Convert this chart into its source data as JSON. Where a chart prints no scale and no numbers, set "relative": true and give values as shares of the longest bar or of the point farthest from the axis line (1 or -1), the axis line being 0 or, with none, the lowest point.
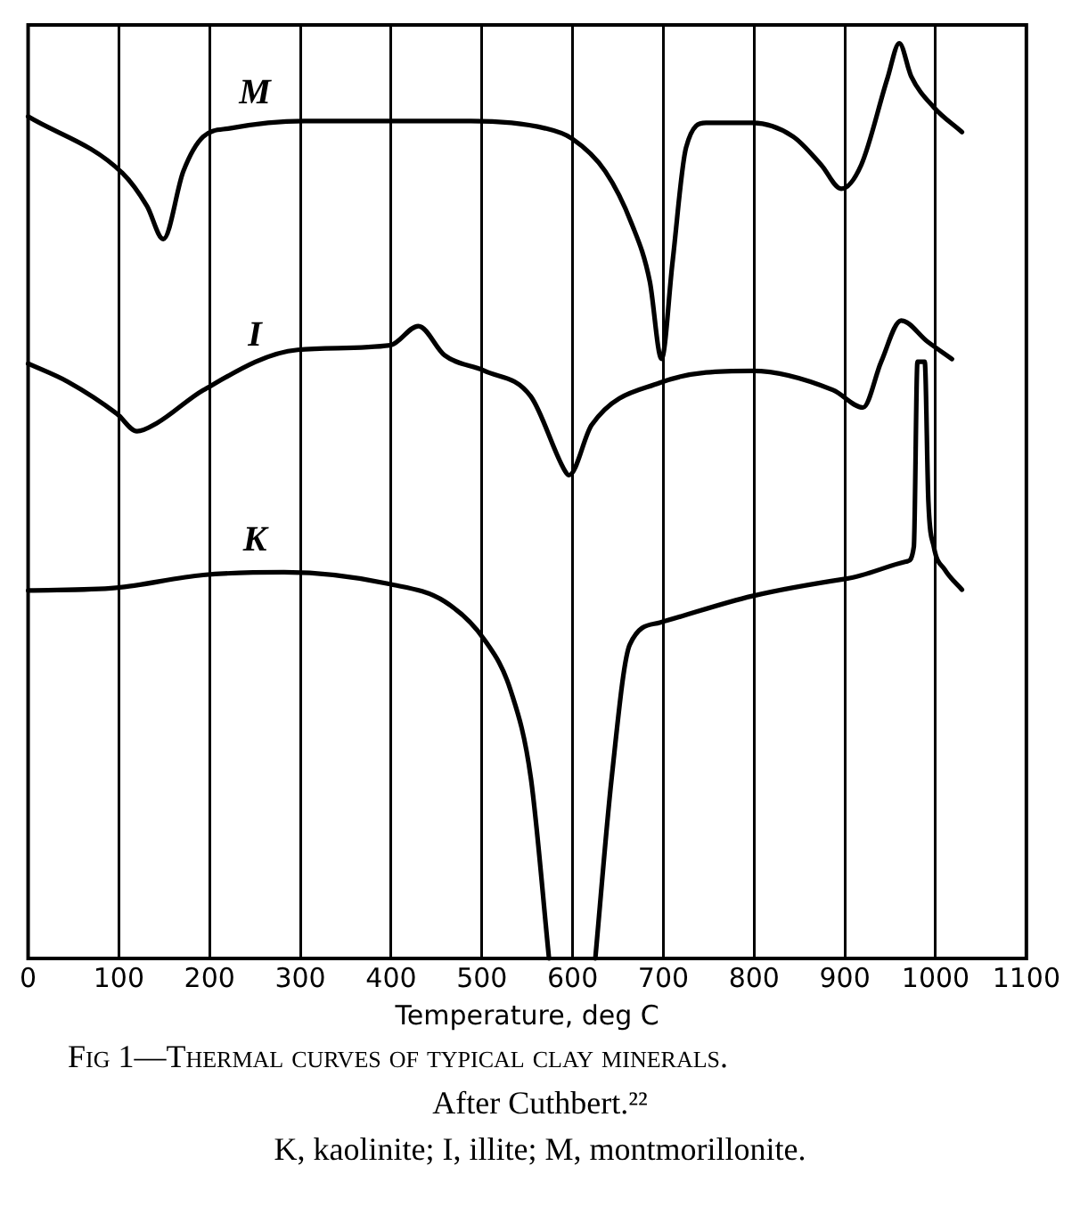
{
  "chart_data": {
    "type": "line",
    "title": "Fig 1—Thermal curves of typical clay minerals.",
    "annotations": [
      "After Cuthbert.²²",
      "K, kaolinite; I, illite; M, montmorillonite."
    ],
    "xlabel": "Temperature, deg C",
    "relative": true,
    "xlim": [
      0,
      1100
    ],
    "xticks": [
      0,
      100,
      200,
      300,
      400,
      500,
      600,
      700,
      800,
      900,
      1000,
      1100
    ],
    "grid": "x",
    "legend": false,
    "marker": "none",
    "line_style": "solid",
    "tick_labels": "x",
    "series": [
      {
        "name": "M",
        "color": "#000000",
        "x": [
          0,
          104,
          131,
          149,
          171,
          193,
          222,
          304,
          488,
          570,
          599,
          636,
          665,
          685,
          698,
          710,
          725,
          747,
          798,
          843,
          874,
          896,
          918,
          947,
          960,
          973,
          998,
          1029
        ],
        "values": [
          0.92,
          0.858,
          0.822,
          0.786,
          0.86,
          0.898,
          0.907,
          0.915,
          0.915,
          0.907,
          0.896,
          0.86,
          0.803,
          0.74,
          0.655,
          0.76,
          0.886,
          0.913,
          0.913,
          0.898,
          0.867,
          0.841,
          0.867,
          0.962,
          1,
          0.964,
          0.93,
          0.903
        ]
      },
      {
        "name": "I",
        "color": "#000000",
        "x": [
          0,
          44,
          98,
          120,
          142,
          193,
          297,
          399,
          430,
          459,
          503,
          554,
          592,
          596,
          621,
          696,
          798,
          887,
          920,
          940,
          962,
          991,
          1018
        ],
        "values": [
          0.65,
          0.63,
          0.595,
          0.576,
          0.585,
          0.621,
          0.665,
          0.67,
          0.691,
          0.659,
          0.642,
          0.614,
          0.532,
          0.528,
          0.583,
          0.629,
          0.642,
          0.621,
          0.602,
          0.652,
          0.697,
          0.674,
          0.655
        ]
      },
      {
        "name": "K",
        "color": "#000000",
        "x": [
          0,
          97,
          193,
          282,
          399,
          459,
          503,
          532,
          554,
          574,
          600,
          625,
          643,
          663,
          696,
          798,
          902,
          969,
          976,
          980,
          988,
          992,
          998,
          1010,
          1029
        ],
        "values": [
          0.402,
          0.405,
          0.419,
          0.422,
          0.409,
          0.39,
          0.348,
          0.292,
          0.197,
          0,
          null,
          0,
          0.197,
          0.343,
          0.367,
          0.396,
          0.415,
          0.434,
          0.45,
          0.652,
          0.652,
          0.5,
          0.45,
          0.425,
          0.403
        ]
      }
    ]
  }
}
